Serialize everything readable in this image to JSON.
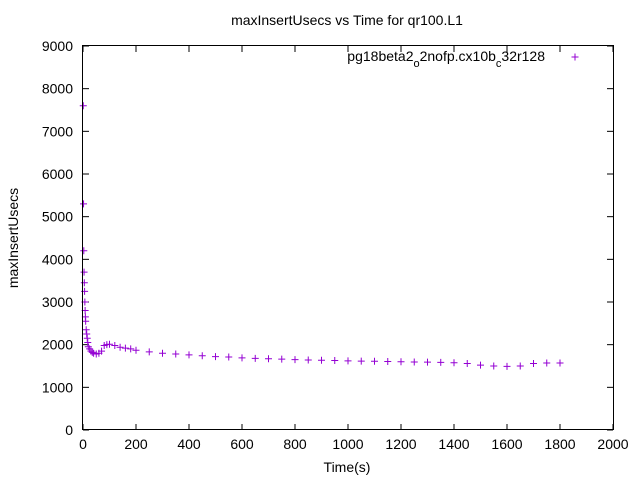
{
  "chart_data": {
    "type": "scatter",
    "title": "maxInsertUsecs vs Time for qr100.L1",
    "xlabel": "Time(s)",
    "ylabel": "maxInsertUsecs",
    "xlim": [
      0,
      2000
    ],
    "ylim": [
      0,
      9000
    ],
    "x_ticks": [
      "0",
      "200",
      "400",
      "600",
      "800",
      "1000",
      "1200",
      "1400",
      "1600",
      "1800",
      "2000"
    ],
    "y_ticks": [
      "0",
      "1000",
      "2000",
      "3000",
      "4000",
      "5000",
      "6000",
      "7000",
      "8000",
      "9000"
    ],
    "grid": false,
    "legend_position": "top-right",
    "series": [
      {
        "name_parts": [
          "pg18beta2",
          "o",
          "2nofp.cx10b",
          "c",
          "32r128"
        ],
        "marker": "+",
        "color": "#9400d3",
        "x": [
          1,
          2,
          3,
          4,
          5,
          6,
          7,
          8,
          9,
          10,
          12,
          14,
          16,
          18,
          20,
          25,
          30,
          35,
          40,
          50,
          60,
          70,
          80,
          90,
          100,
          120,
          140,
          160,
          180,
          200,
          250,
          300,
          350,
          400,
          450,
          500,
          550,
          600,
          650,
          700,
          750,
          800,
          850,
          900,
          950,
          1000,
          1050,
          1100,
          1150,
          1200,
          1250,
          1300,
          1350,
          1400,
          1450,
          1500,
          1550,
          1600,
          1650,
          1700,
          1750,
          1800
        ],
        "y": [
          7600,
          5300,
          4200,
          3700,
          3450,
          3250,
          3000,
          2800,
          2650,
          2550,
          2350,
          2250,
          2150,
          2050,
          1950,
          1900,
          1850,
          1820,
          1800,
          1780,
          1800,
          1850,
          1980,
          2000,
          2010,
          1980,
          1940,
          1920,
          1900,
          1870,
          1830,
          1800,
          1780,
          1760,
          1740,
          1720,
          1710,
          1690,
          1680,
          1670,
          1660,
          1650,
          1640,
          1635,
          1630,
          1620,
          1615,
          1610,
          1605,
          1600,
          1595,
          1590,
          1585,
          1575,
          1560,
          1520,
          1500,
          1490,
          1500,
          1560,
          1570,
          1570
        ]
      }
    ]
  }
}
